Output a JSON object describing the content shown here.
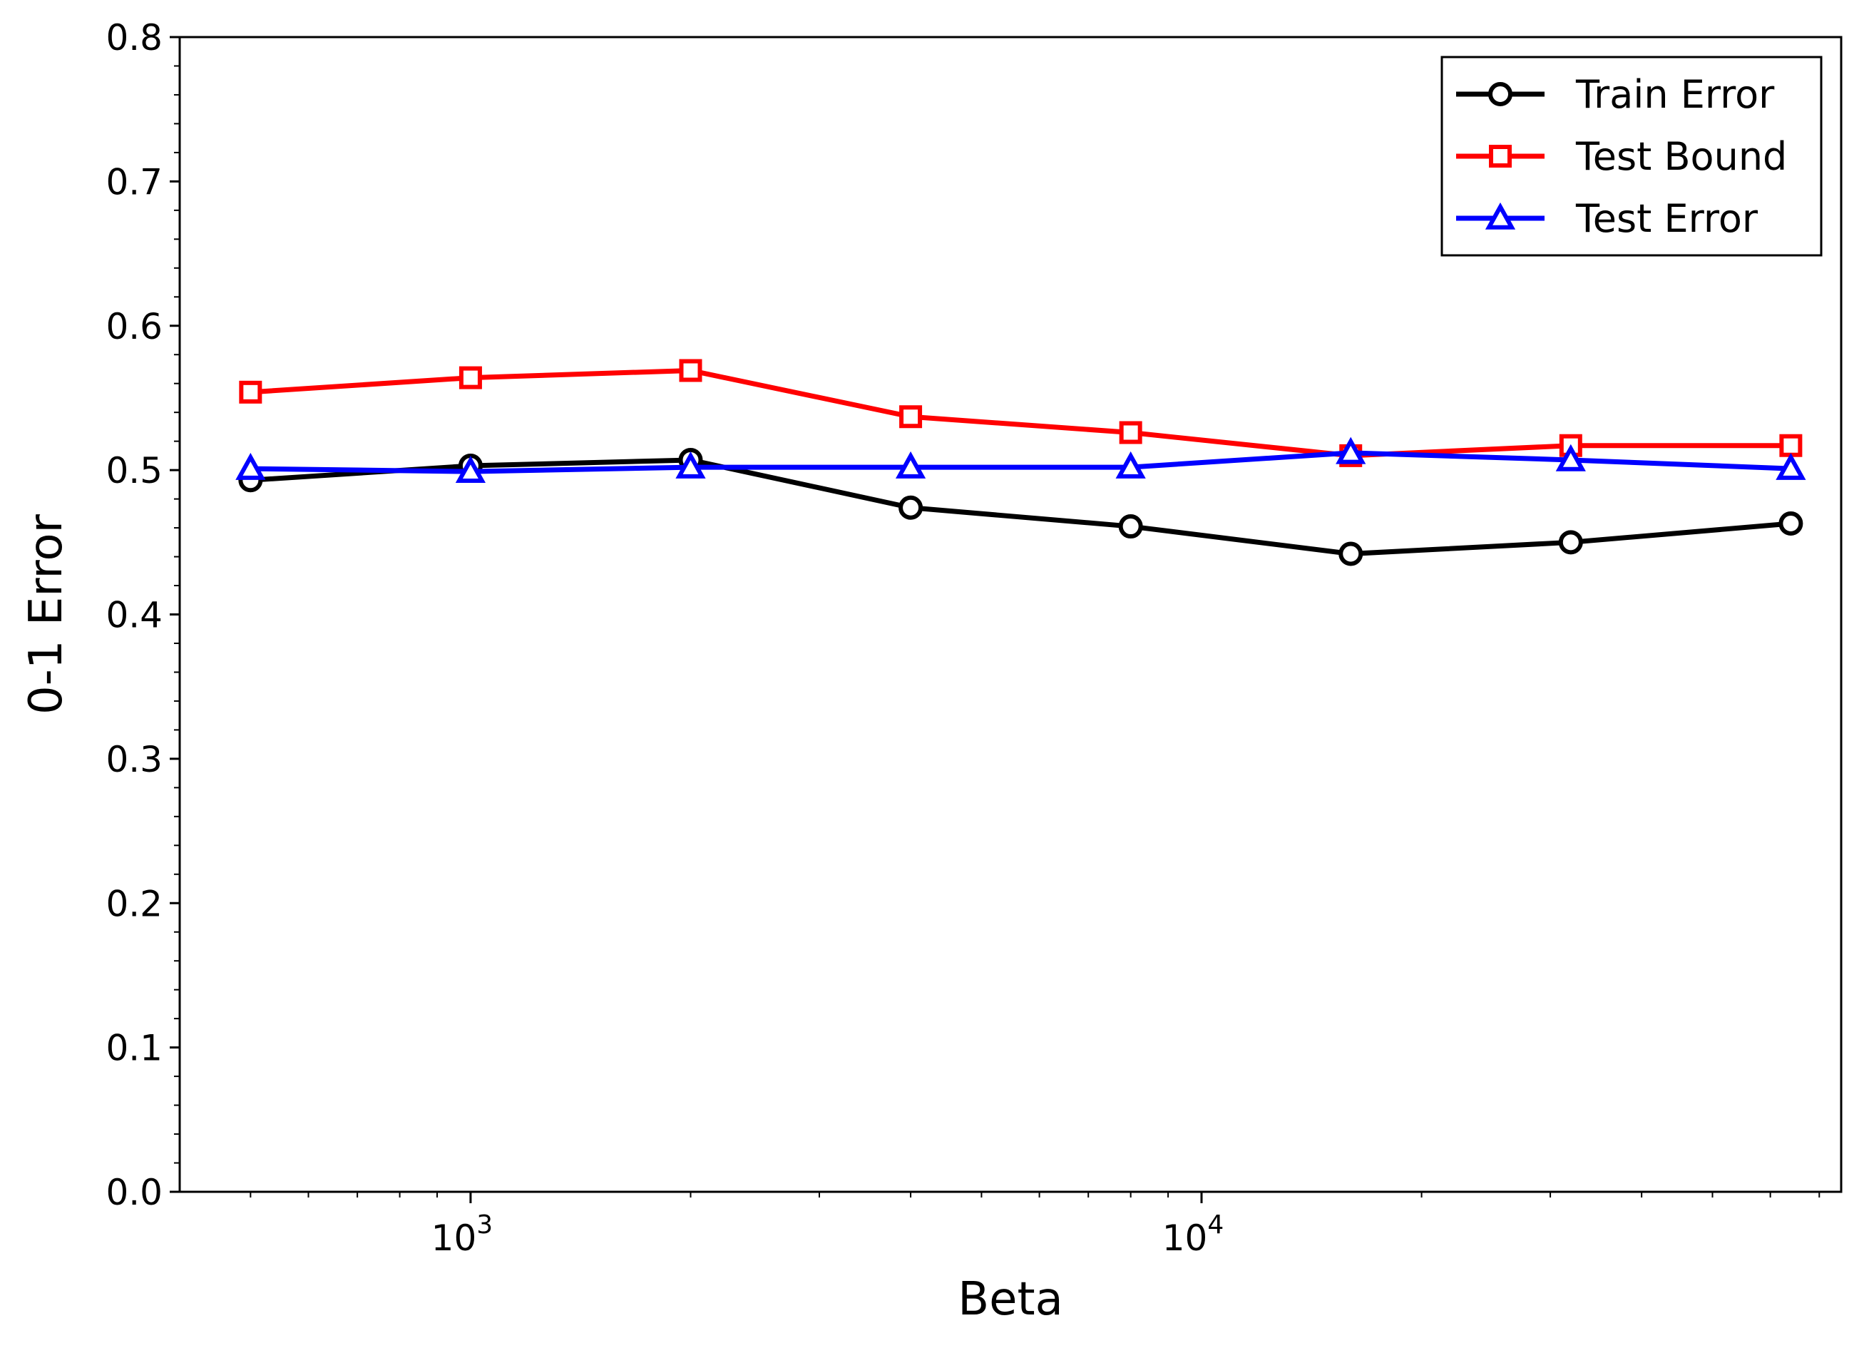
{
  "chart_data": {
    "type": "line",
    "title": "",
    "xlabel": "Beta",
    "ylabel": "0-1 Error",
    "xscale": "log",
    "xlim": [
      400,
      75000
    ],
    "ylim": [
      0.0,
      0.8
    ],
    "grid": false,
    "legend_position": "top-right",
    "x": [
      500,
      1000,
      2000,
      4000,
      8000,
      16000,
      32000,
      64000
    ],
    "y_ticks": [
      "0.0",
      "0.1",
      "0.2",
      "0.3",
      "0.4",
      "0.5",
      "0.6",
      "0.7",
      "0.8"
    ],
    "x_ticks": [
      {
        "value": 1000,
        "base": "10",
        "exp": "3"
      },
      {
        "value": 10000,
        "base": "10",
        "exp": "4"
      }
    ],
    "series": [
      {
        "name": "Train Error",
        "color": "#000000",
        "marker": "circle",
        "values": [
          0.493,
          0.503,
          0.507,
          0.474,
          0.461,
          0.442,
          0.45,
          0.463
        ]
      },
      {
        "name": "Test Bound",
        "color": "#ff0000",
        "marker": "square",
        "values": [
          0.554,
          0.564,
          0.569,
          0.537,
          0.526,
          0.51,
          0.517,
          0.517
        ]
      },
      {
        "name": "Test Error",
        "color": "#0000ff",
        "marker": "triangle",
        "values": [
          0.501,
          0.499,
          0.502,
          0.502,
          0.502,
          0.512,
          0.507,
          0.501
        ]
      }
    ]
  }
}
